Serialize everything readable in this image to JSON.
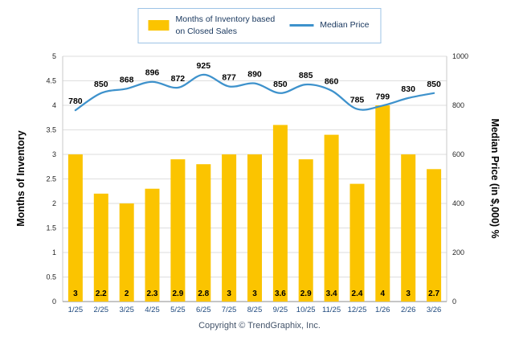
{
  "legend": {
    "bars_label": "Months of Inventory based on Closed Sales",
    "bars_label_line1": "Months of Inventory based",
    "bars_label_line2": "on Closed Sales",
    "line_label": "Median Price"
  },
  "axes": {
    "left_title": "Months of Inventory",
    "right_title": "Median Price (in $,000) %",
    "left_ticks": [
      "0",
      "0.5",
      "1",
      "1.5",
      "2",
      "2.5",
      "3",
      "3.5",
      "4",
      "4.5",
      "5"
    ],
    "right_ticks": [
      "0",
      "200",
      "400",
      "600",
      "800",
      "1000"
    ]
  },
  "footer": {
    "copyright": "Copyright © TrendGraphix, Inc."
  },
  "chart_data": {
    "type": "bar",
    "subtype": "bar+line combo",
    "categories": [
      "1/25",
      "2/25",
      "3/25",
      "4/25",
      "5/25",
      "6/25",
      "7/25",
      "8/25",
      "9/25",
      "10/25",
      "11/25",
      "12/25",
      "1/26",
      "2/26",
      "3/26"
    ],
    "series": [
      {
        "name": "Months of Inventory based on Closed Sales",
        "type": "bar",
        "axis": "left",
        "color": "#FBC400",
        "values": [
          3,
          2.2,
          2,
          2.3,
          2.9,
          2.8,
          3,
          3,
          3.6,
          2.9,
          3.4,
          2.4,
          4,
          3,
          2.7
        ],
        "labels": [
          "3",
          "2.2",
          "2",
          "2.3",
          "2.9",
          "2.8",
          "3",
          "3",
          "3.6",
          "2.9",
          "3.4",
          "2.4",
          "4",
          "3",
          "2.7"
        ]
      },
      {
        "name": "Median Price",
        "type": "line",
        "axis": "right",
        "color": "#3E92CC",
        "values": [
          780,
          850,
          868,
          896,
          872,
          925,
          877,
          890,
          850,
          885,
          860,
          785,
          799,
          830,
          850
        ],
        "labels": [
          "780",
          "850",
          "868",
          "896",
          "872",
          "925",
          "877",
          "890",
          "850",
          "885",
          "860",
          "785",
          "799",
          "830",
          "850"
        ]
      }
    ],
    "left_axis": {
      "title": "Months of Inventory",
      "min": 0,
      "max": 5,
      "step": 0.5
    },
    "right_axis": {
      "title": "Median Price (in $,000) %",
      "min": 0,
      "max": 1000,
      "step": 200
    },
    "grid": true,
    "legend_position": "top"
  }
}
